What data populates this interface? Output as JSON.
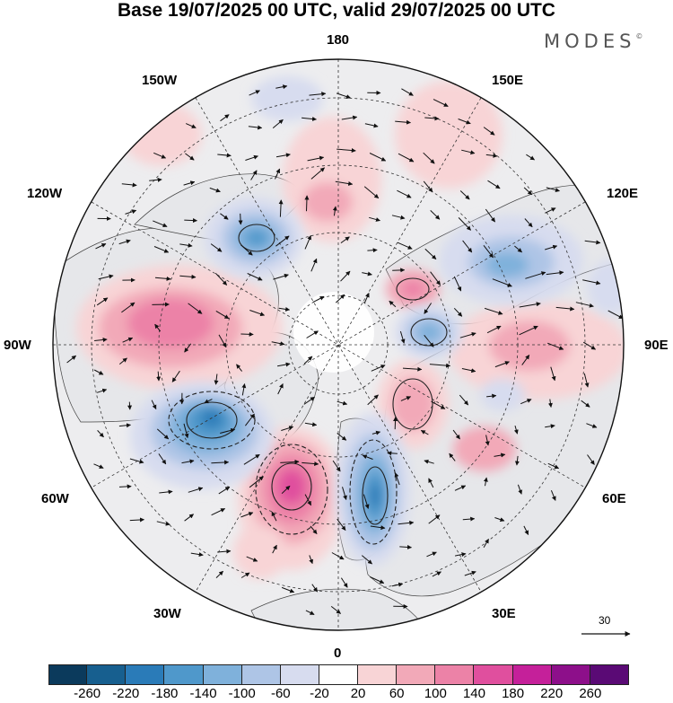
{
  "header": {
    "title": "Base 19/07/2025 00 UTC, valid 29/07/2025 00 UTC"
  },
  "brand": {
    "name": "MODES",
    "mark": "©"
  },
  "map": {
    "projection": "north-polar-stereographic",
    "longitude_labels": {
      "top": "180",
      "upper_left": "150W",
      "upper_right": "150E",
      "left_upper": "120W",
      "right_upper": "120E",
      "left": "90W",
      "right": "90E",
      "left_lower": "60W",
      "right_lower": "60E",
      "lower_left": "30W",
      "lower_right": "30E",
      "bottom": "0"
    },
    "anomaly_centers": [
      {
        "kind": "positive",
        "region": "north-america",
        "strength": 180
      },
      {
        "kind": "positive",
        "region": "north-atlantic",
        "strength": 220
      },
      {
        "kind": "positive",
        "region": "bering",
        "strength": 140
      },
      {
        "kind": "positive",
        "region": "central-asia",
        "strength": 100
      },
      {
        "kind": "positive",
        "region": "kara-sea",
        "strength": 140
      },
      {
        "kind": "negative",
        "region": "greenland-labrador",
        "strength": -220
      },
      {
        "kind": "negative",
        "region": "scandinavia",
        "strength": -220
      },
      {
        "kind": "negative",
        "region": "alaska",
        "strength": -180
      },
      {
        "kind": "negative",
        "region": "east-siberia",
        "strength": -180
      },
      {
        "kind": "negative",
        "region": "laptev",
        "strength": -140
      }
    ]
  },
  "reference_vector": {
    "value": "30"
  },
  "colorbar": {
    "ticks": [
      "-260",
      "-220",
      "-180",
      "-140",
      "-100",
      "-60",
      "-20",
      "20",
      "60",
      "100",
      "140",
      "180",
      "220",
      "260"
    ],
    "colors": [
      "#0b3a5c",
      "#175f8f",
      "#2a7bb8",
      "#4f98cb",
      "#7fb1db",
      "#aec5e6",
      "#d7dcef",
      "#ffffff",
      "#f8d4d6",
      "#f2a9b8",
      "#ec82a7",
      "#e04f9e",
      "#c5209a",
      "#8d0f8a",
      "#5a0a75"
    ]
  }
}
